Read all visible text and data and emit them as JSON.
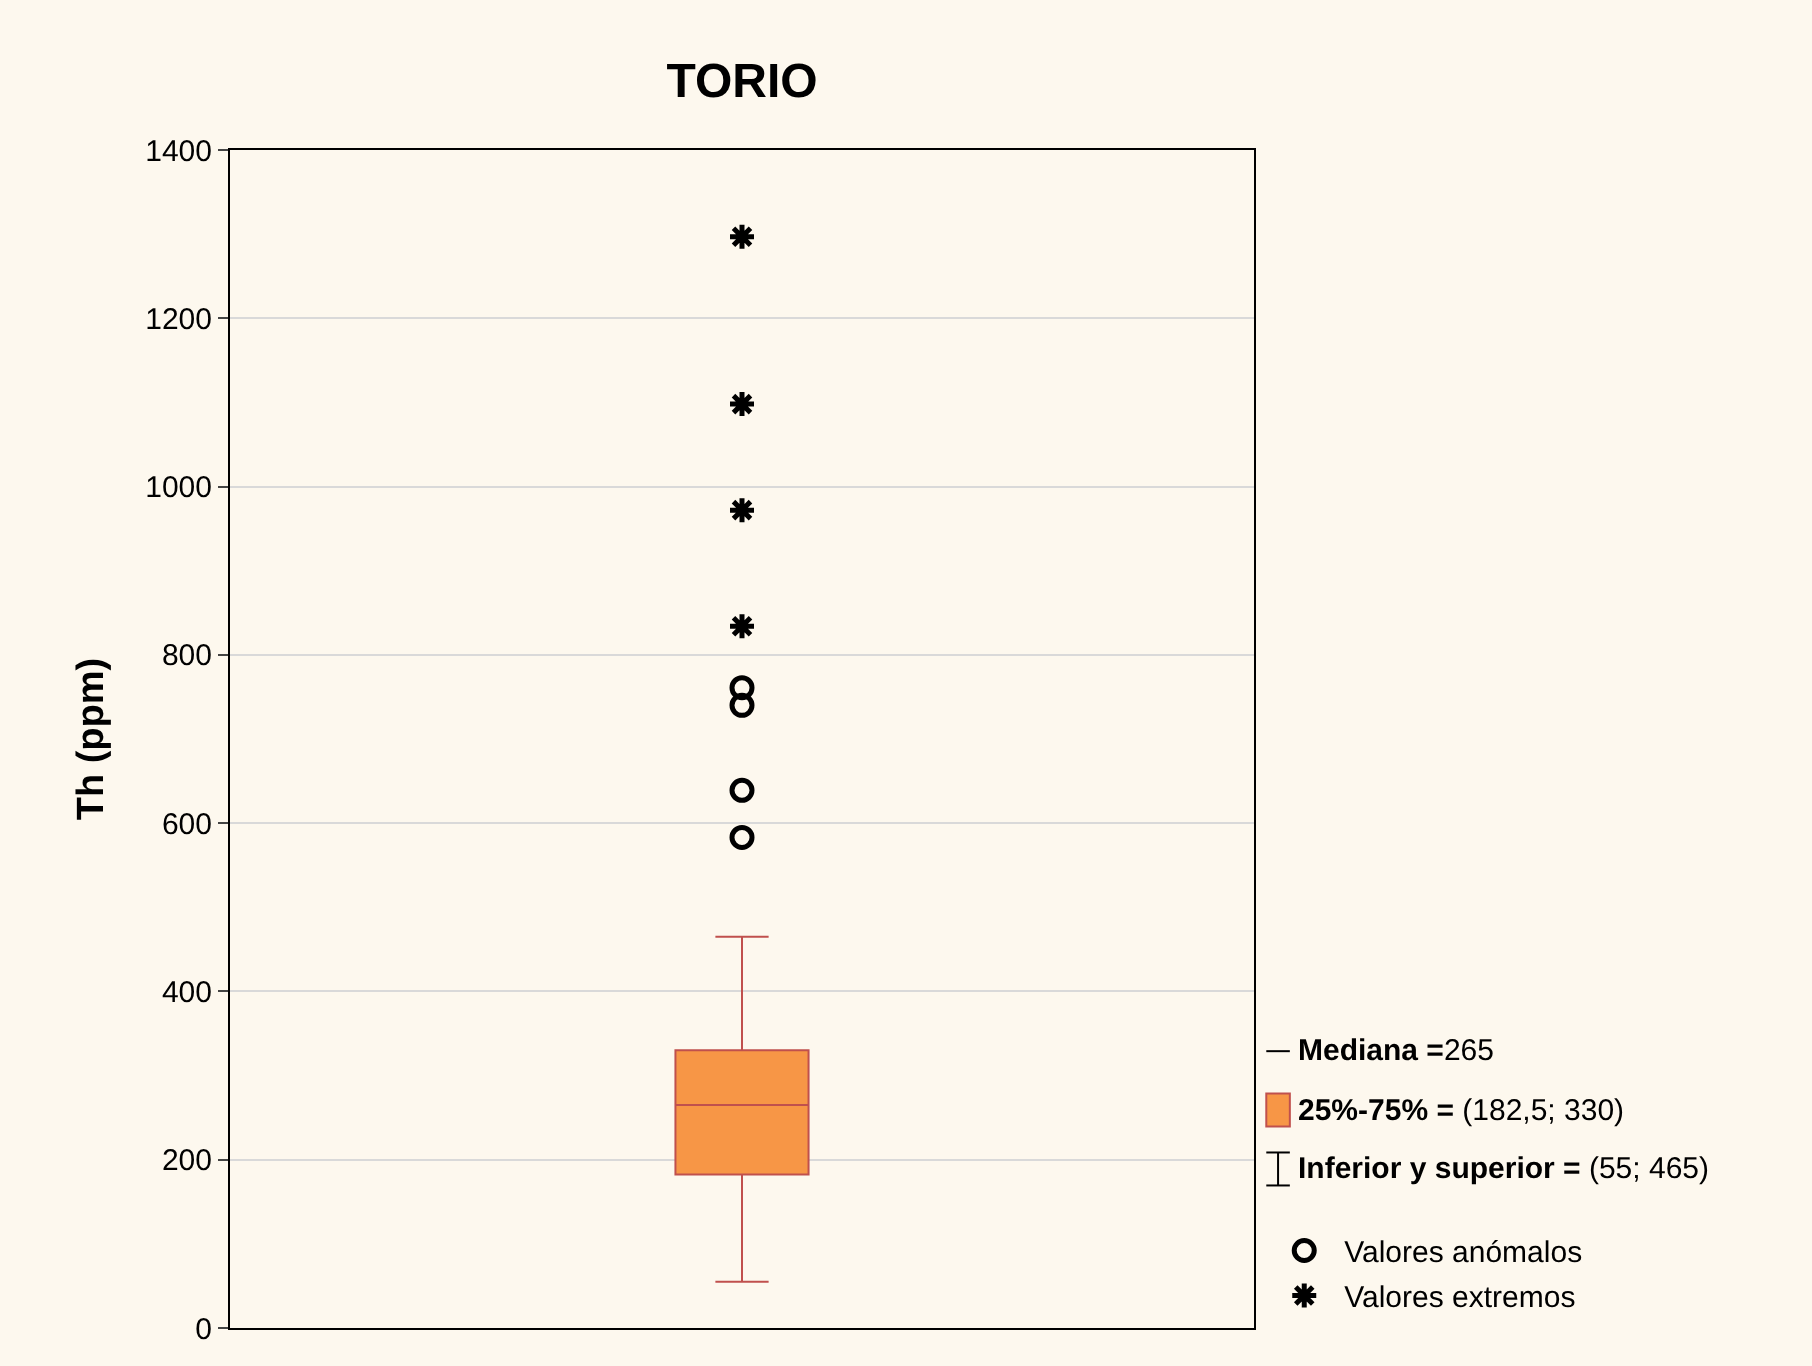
{
  "chart_data": {
    "type": "box",
    "title": "TORIO",
    "ylabel": "Th (ppm)",
    "categories": [
      null
    ],
    "ylim": [
      0,
      1400
    ],
    "yticks": [
      0,
      200,
      400,
      600,
      800,
      1000,
      1200,
      1400
    ],
    "grid": "y",
    "legend": "bottom right",
    "series": [
      {
        "color": "#f79646",
        "boxes": [
          {
            "low": 55,
            "q1": 182.5,
            "median": 265,
            "q3": 330,
            "high": 465
          }
        ]
      },
      {
        "type": "scatter",
        "name": "Valores anómalos",
        "color": "#000000",
        "marker": "circle",
        "x": [
          null,
          null,
          null,
          null
        ],
        "values": [
          583,
          639,
          740,
          761
        ]
      },
      {
        "type": "scatter",
        "name": "Valores extremos",
        "color": "#000000",
        "marker": "cross",
        "x": [
          null,
          null,
          null,
          null
        ],
        "values": [
          834,
          972,
          1098,
          1297
        ]
      }
    ],
    "annotations": [
      "Mediana =265",
      "25%-75% = (182,5; 330)",
      "Inferior y superior = (55; 465)"
    ]
  }
}
